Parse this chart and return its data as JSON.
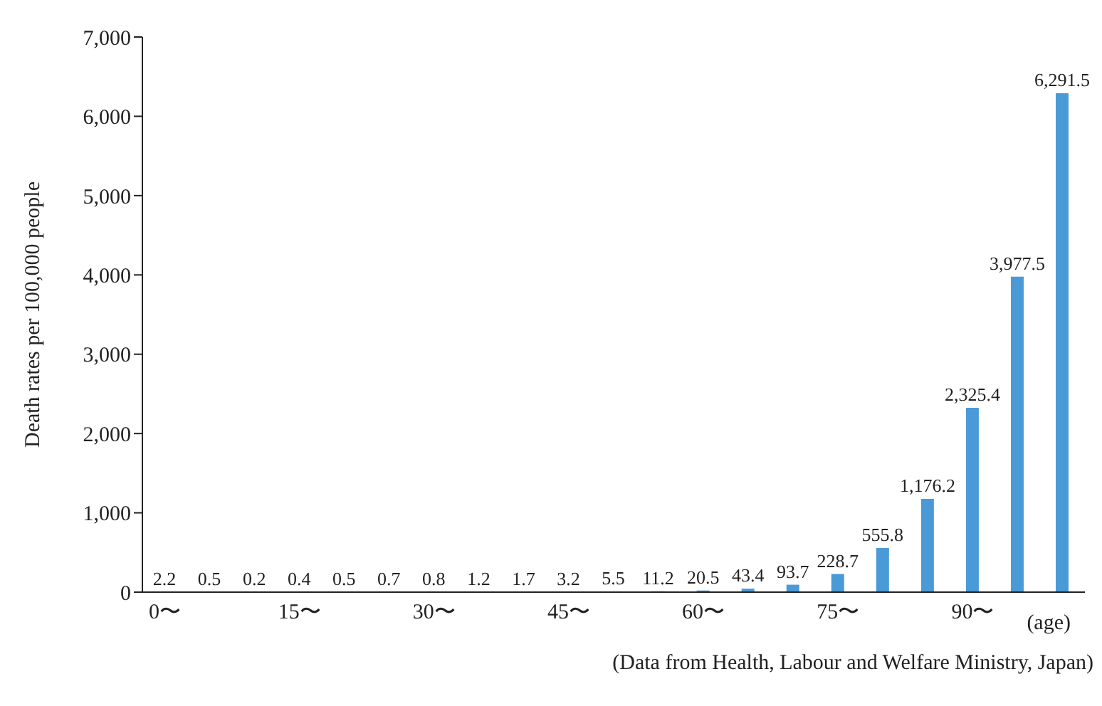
{
  "chart_data": {
    "type": "bar",
    "ylabel": "Death rates per 100,000 people",
    "xlabel": "(age)",
    "categories": [
      "0〜",
      null,
      null,
      "15〜",
      null,
      null,
      "30〜",
      null,
      null,
      "45〜",
      null,
      null,
      "60〜",
      null,
      null,
      "75〜",
      null,
      null,
      "90〜",
      null,
      null
    ],
    "values": [
      2.2,
      0.5,
      0.2,
      0.4,
      0.5,
      0.7,
      0.8,
      1.2,
      1.7,
      3.2,
      5.5,
      11.2,
      20.5,
      43.4,
      93.7,
      228.7,
      555.8,
      1176.2,
      2325.4,
      3977.5,
      6291.5
    ],
    "value_labels": [
      "2.2",
      "0.5",
      "0.2",
      "0.4",
      "0.5",
      "0.7",
      "0.8",
      "1.2",
      "1.7",
      "3.2",
      "5.5",
      "11.2",
      "20.5",
      "43.4",
      "93.7",
      "228.7",
      "555.8",
      "1,176.2",
      "2,325.4",
      "3,977.5",
      "6,291.5"
    ],
    "color": "#4a9ad8",
    "ylim": [
      0,
      7000
    ],
    "yticks": [
      0,
      {
        "value": 1000,
        "label": "1,000"
      },
      {
        "value": 2000,
        "label": "2,000"
      },
      {
        "value": 3000,
        "label": "3,000"
      },
      {
        "value": 4000,
        "label": "4,000"
      },
      {
        "value": 5000,
        "label": "5,000"
      },
      {
        "value": 6000,
        "label": "6,000"
      },
      {
        "value": 7000,
        "label": "7,000"
      }
    ],
    "grid": false,
    "legend": false,
    "annotations": [
      "(Data from Health, Labour and Welfare Ministry, Japan)"
    ]
  }
}
